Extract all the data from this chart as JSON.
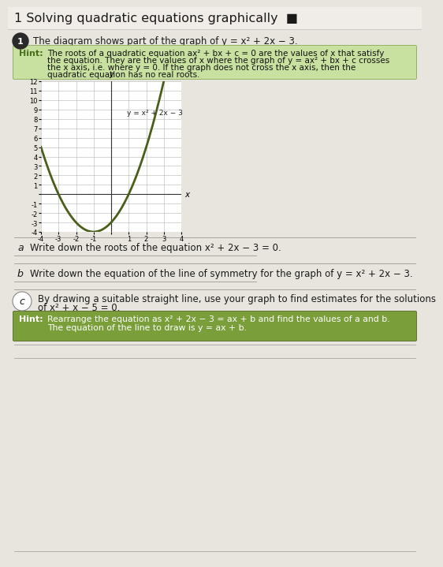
{
  "title": "1 Solving quadratic equations graphically",
  "question_text": "The diagram shows part of the graph of y = x² + 2x − 3.",
  "hint1_label": "Hint:",
  "hint1_line1": "The roots of a quadratic equation ax² + bx + c = 0 are the values of x that satisfy",
  "hint1_line2": "the equation. They are the values of x where the graph of y = ax² + bx + c crosses",
  "hint1_line3": "the x axis, i.e. where y = 0. If the graph does not cross the x axis, then the",
  "hint1_line4": "quadratic equation has no real roots.",
  "graph_equation_label": "y = x² + 2x − 3",
  "curve_color": "#4a5e1a",
  "part_a_text": "Write down the roots of the equation x² + 2x − 3 = 0.",
  "part_b_text": "Write down the equation of the line of symmetry for the graph of y = x² + 2x − 3.",
  "part_c_text": "By drawing a suitable straight line, use your graph to find estimates for the solutions of x² + x − 5 = 0.",
  "hint2_label": "Hint:",
  "hint2_line1": "Rearrange the equation as x² + 2x − 3 = ax + b and find the values of a and b.",
  "hint2_line2": "The equation of the line to draw is y = ax + b.",
  "page_bg": "#e8e5df",
  "title_bg": "#f5f3ef",
  "hint1_bg": "#c8e0a0",
  "hint2_bg": "#7a9e3a",
  "hint_label_color": "#4a6e1a",
  "grid_color": "#b0b8b0",
  "curve_linewidth": 2.0,
  "answer_line_color": "#999999"
}
